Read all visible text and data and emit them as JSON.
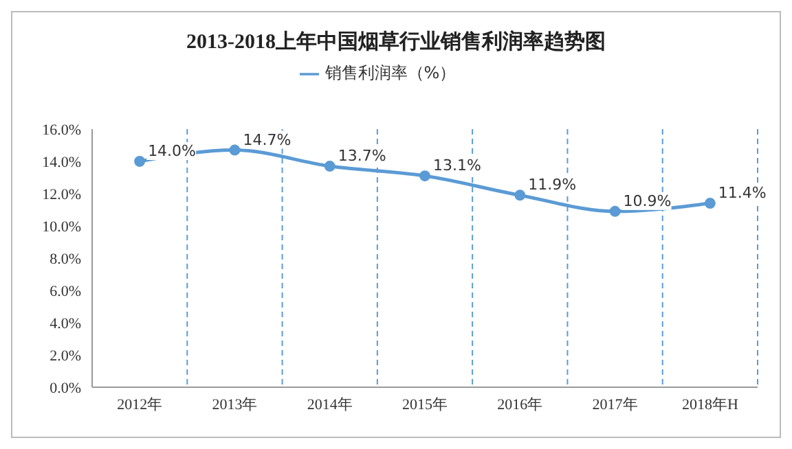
{
  "chart_data": {
    "type": "line",
    "title": "2013-2018上年中国烟草行业销售利润率趋势图",
    "categories": [
      "2012年",
      "2013年",
      "2014年",
      "2015年",
      "2016年",
      "2017年",
      "2018年H"
    ],
    "series": [
      {
        "name": "销售利润率（%）",
        "color": "#5b9bd5",
        "values": [
          14.0,
          14.7,
          13.7,
          13.1,
          11.9,
          10.9,
          11.4
        ],
        "value_labels": [
          "14.0%",
          "14.7%",
          "13.7%",
          "13.1%",
          "11.9%",
          "10.9%",
          "11.4%"
        ]
      }
    ],
    "ylim": [
      0,
      16
    ],
    "yticks": [
      {
        "value": 0,
        "label": "0.0%"
      },
      {
        "value": 2,
        "label": "2.0%"
      },
      {
        "value": 4,
        "label": "4.0%"
      },
      {
        "value": 6,
        "label": "6.0%"
      },
      {
        "value": 8,
        "label": "8.0%"
      },
      {
        "value": 10,
        "label": "10.0%"
      },
      {
        "value": 12,
        "label": "12.0%"
      },
      {
        "value": 14,
        "label": "14.0%"
      },
      {
        "value": 16,
        "label": "16.0%"
      }
    ],
    "grid": "x",
    "legend": "top",
    "marker": "circle",
    "line_style": "solid"
  }
}
